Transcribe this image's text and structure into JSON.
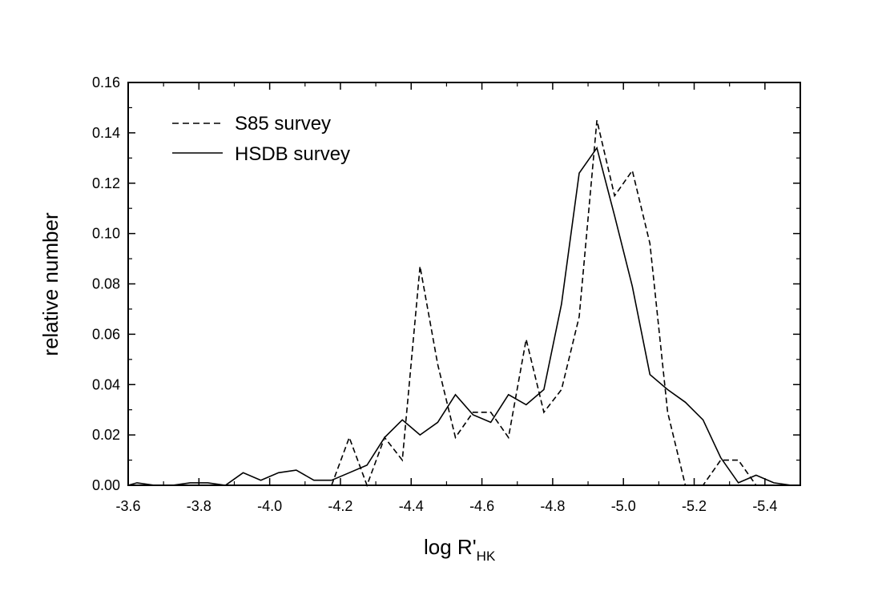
{
  "chart_data": {
    "type": "line",
    "xlabel": "log R'",
    "xlabel_sub": "HK",
    "ylabel": "relative number",
    "xlim": [
      -3.6,
      -5.5
    ],
    "ylim": [
      0,
      0.16
    ],
    "x_axis_reversed": true,
    "x_ticks": [
      "-3.6",
      "-3.8",
      "-4.0",
      "-4.2",
      "-4.4",
      "-4.6",
      "-4.8",
      "-5.0",
      "-5.2",
      "-5.4"
    ],
    "y_ticks": [
      "0.00",
      "0.02",
      "0.04",
      "0.06",
      "0.08",
      "0.10",
      "0.12",
      "0.14",
      "0.16"
    ],
    "legend_position": "top-left",
    "series": [
      {
        "name": "S85 survey",
        "line_style": "dashed",
        "color": "#000000",
        "x": [
          -4.175,
          -4.225,
          -4.275,
          -4.325,
          -4.375,
          -4.425,
          -4.475,
          -4.525,
          -4.575,
          -4.625,
          -4.675,
          -4.725,
          -4.775,
          -4.825,
          -4.875,
          -4.925,
          -4.975,
          -5.025,
          -5.075,
          -5.125,
          -5.175,
          -5.225,
          -5.275,
          -5.325,
          -5.375
        ],
        "y": [
          0.0,
          0.019,
          0.0,
          0.019,
          0.01,
          0.087,
          0.048,
          0.019,
          0.029,
          0.029,
          0.019,
          0.058,
          0.029,
          0.038,
          0.067,
          0.145,
          0.115,
          0.125,
          0.096,
          0.029,
          0.0,
          0.0,
          0.01,
          0.01,
          0.0
        ]
      },
      {
        "name": "HSDB survey",
        "line_style": "solid",
        "color": "#000000",
        "x": [
          -3.6,
          -3.625,
          -3.675,
          -3.725,
          -3.775,
          -3.825,
          -3.875,
          -3.925,
          -3.975,
          -4.025,
          -4.075,
          -4.125,
          -4.175,
          -4.225,
          -4.275,
          -4.325,
          -4.375,
          -4.425,
          -4.475,
          -4.525,
          -4.575,
          -4.625,
          -4.675,
          -4.725,
          -4.775,
          -4.825,
          -4.875,
          -4.925,
          -4.975,
          -5.025,
          -5.075,
          -5.125,
          -5.175,
          -5.225,
          -5.275,
          -5.325,
          -5.375,
          -5.425,
          -5.475
        ],
        "y": [
          0.0,
          0.001,
          0.0,
          0.0,
          0.001,
          0.001,
          0.0,
          0.005,
          0.002,
          0.005,
          0.006,
          0.002,
          0.002,
          0.005,
          0.008,
          0.019,
          0.026,
          0.02,
          0.025,
          0.036,
          0.028,
          0.025,
          0.036,
          0.032,
          0.038,
          0.072,
          0.124,
          0.134,
          0.107,
          0.079,
          0.044,
          0.038,
          0.033,
          0.026,
          0.011,
          0.001,
          0.004,
          0.001,
          0.0
        ]
      }
    ]
  }
}
